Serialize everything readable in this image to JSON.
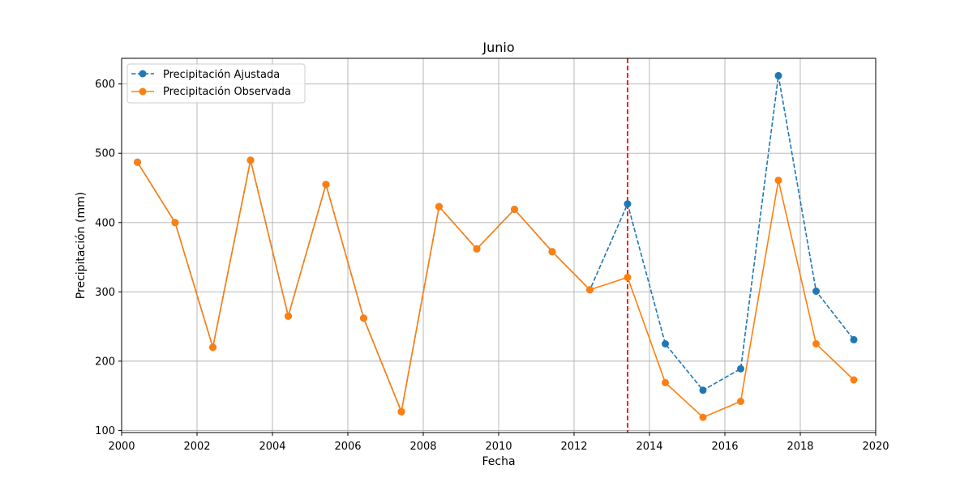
{
  "chart_data": {
    "type": "line",
    "title": "Junio",
    "xlabel": "Fecha",
    "ylabel": "Precipitación (mm)",
    "xlim": [
      2000,
      2020
    ],
    "ylim": [
      97,
      637
    ],
    "x_ticks": [
      "2000",
      "2002",
      "2004",
      "2006",
      "2008",
      "2010",
      "2012",
      "2014",
      "2016",
      "2018",
      "2020"
    ],
    "y_ticks": [
      "100",
      "200",
      "300",
      "400",
      "500",
      "600"
    ],
    "grid": true,
    "legend_position": "top-left",
    "x": [
      2000.42,
      2001.42,
      2002.42,
      2003.42,
      2004.42,
      2005.42,
      2006.42,
      2007.42,
      2008.42,
      2009.42,
      2010.42,
      2011.42,
      2012.42,
      2013.42,
      2014.42,
      2015.42,
      2016.42,
      2017.42,
      2018.42,
      2019.42
    ],
    "series": [
      {
        "name": "Precipitación Ajustada",
        "color": "#1f77b4",
        "style": "dashed",
        "values": [
          487,
          400,
          220,
          490,
          265,
          455,
          262,
          127,
          423,
          362,
          419,
          358,
          303,
          427,
          225,
          158,
          189,
          612,
          301,
          231
        ]
      },
      {
        "name": "Precipitación Observada",
        "color": "#ff7f0e",
        "style": "solid",
        "values": [
          487,
          400,
          220,
          490,
          265,
          455,
          262,
          127,
          423,
          362,
          419,
          358,
          303,
          321,
          169,
          119,
          142,
          461,
          225,
          173
        ]
      }
    ],
    "vline": {
      "x": 2013.42,
      "color": "#ff0000",
      "style": "dashed"
    }
  }
}
